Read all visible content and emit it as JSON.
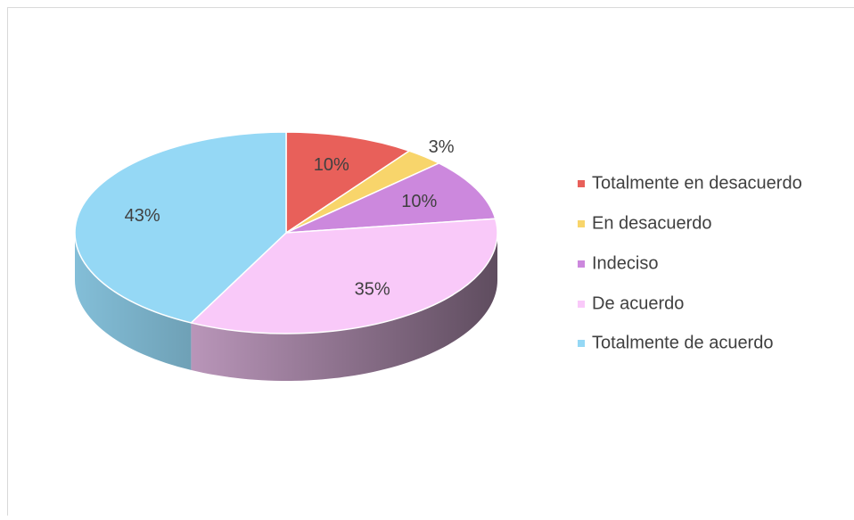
{
  "chart_data": {
    "type": "pie",
    "categories": [
      "Totalmente en desacuerdo",
      "En desacuerdo",
      "Indeciso",
      "De acuerdo",
      "Totalmente de acuerdo"
    ],
    "values": [
      10,
      3,
      10,
      35,
      43
    ],
    "value_labels": [
      "10%",
      "3%",
      "10%",
      "35%",
      "43%"
    ],
    "colors": [
      "#e8605a",
      "#f8d56b",
      "#cc88dd",
      "#f9c9f9",
      "#95d8f5"
    ],
    "legend": "right"
  }
}
